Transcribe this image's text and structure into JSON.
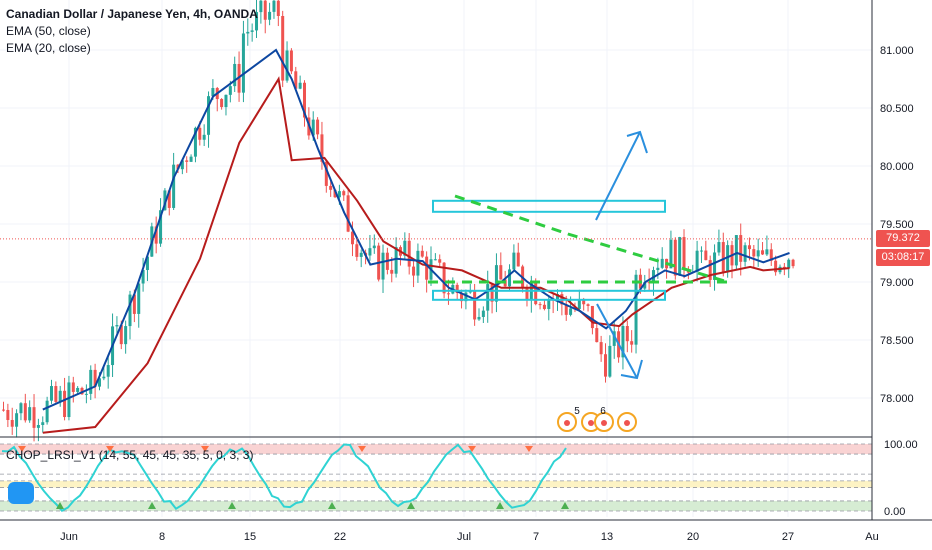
{
  "legend": {
    "title": "Canadian Dollar / Japanese Yen, 4h, OANDA",
    "ema50": "EMA (50, close)",
    "ema20": "EMA (20, close)"
  },
  "oscillator": {
    "label": "CHOP_LRSI_V1 (14, 55, 45, 45, 35, 5, 0, 3, 3)",
    "y_ticks": [
      "100.00",
      "0.00"
    ],
    "colors": {
      "line": "#2fd3d3",
      "up_marker": "#4caf50",
      "down_marker": "#ff7043",
      "upper_band": "#f9d3d3",
      "lower_band": "#d6ecd3",
      "mid_band": "#fdf3c4"
    }
  },
  "price_tags": {
    "last_price": "79.372",
    "countdown": "03:08:17",
    "last_color": "#ef5350",
    "countdown_color": "#ef5350"
  },
  "events": [
    "5",
    "6"
  ],
  "chart_data": {
    "type": "candlestick",
    "title": "Canadian Dollar / Japanese Yen, 4h, OANDA",
    "x_ticks": [
      "Jun",
      "8",
      "15",
      "22",
      "Jul",
      "7",
      "13",
      "20",
      "27",
      "Au"
    ],
    "y_ticks": [
      "81.000",
      "80.500",
      "80.000",
      "79.500",
      "79.000",
      "78.500",
      "78.000"
    ],
    "ylim": [
      77.7,
      81.5
    ],
    "last_price": 79.372,
    "series": [
      {
        "name": "EMA (50, close)",
        "color": "#b71c1c",
        "points": [
          [
            -2,
            77.7
          ],
          [
            2,
            77.75
          ],
          [
            6,
            78.3
          ],
          [
            10,
            79.2
          ],
          [
            13,
            80.2
          ],
          [
            16,
            80.75
          ],
          [
            17,
            80.05
          ],
          [
            19.5,
            80.07
          ],
          [
            22,
            79.7
          ],
          [
            24,
            79.35
          ],
          [
            27,
            79.15
          ],
          [
            30,
            79.1
          ],
          [
            33,
            78.95
          ],
          [
            36,
            78.95
          ],
          [
            38,
            78.85
          ],
          [
            40,
            78.65
          ],
          [
            42,
            78.62
          ],
          [
            43,
            78.72
          ],
          [
            46,
            78.95
          ],
          [
            49,
            79.06
          ],
          [
            52,
            79.13
          ],
          [
            53,
            79.1
          ],
          [
            55,
            79.12
          ]
        ]
      },
      {
        "name": "EMA (20, close)",
        "color": "#0d47a1",
        "points": [
          [
            -2,
            77.9
          ],
          [
            2,
            78.1
          ],
          [
            5,
            78.9
          ],
          [
            8,
            79.9
          ],
          [
            11,
            80.6
          ],
          [
            15.8,
            81.0
          ],
          [
            17,
            80.75
          ],
          [
            19,
            80.15
          ],
          [
            21,
            79.6
          ],
          [
            23,
            79.15
          ],
          [
            25,
            79.2
          ],
          [
            27,
            79.18
          ],
          [
            29,
            78.95
          ],
          [
            31,
            78.85
          ],
          [
            33,
            79.0
          ],
          [
            34,
            79.1
          ],
          [
            35,
            79.0
          ],
          [
            37,
            78.85
          ],
          [
            39,
            78.75
          ],
          [
            41,
            78.6
          ],
          [
            42.5,
            78.75
          ],
          [
            44,
            79.0
          ],
          [
            45.5,
            79.1
          ],
          [
            47,
            79.05
          ],
          [
            49,
            79.15
          ],
          [
            51,
            79.25
          ],
          [
            53,
            79.17
          ],
          [
            55,
            79.25
          ]
        ]
      }
    ],
    "annotations": {
      "resistance_box": [
        79.6,
        79.7
      ],
      "support_box": [
        78.88,
        78.95
      ],
      "trend_lines": [
        [
          [
            43.2,
            79.72
          ],
          [
            55.5,
            79.4
          ],
          [
            66,
            78.99
          ]
        ],
        [
          [
            41.5,
            78.99
          ],
          [
            67,
            78.99
          ]
        ]
      ],
      "arrows": [
        "up",
        "down"
      ]
    }
  }
}
